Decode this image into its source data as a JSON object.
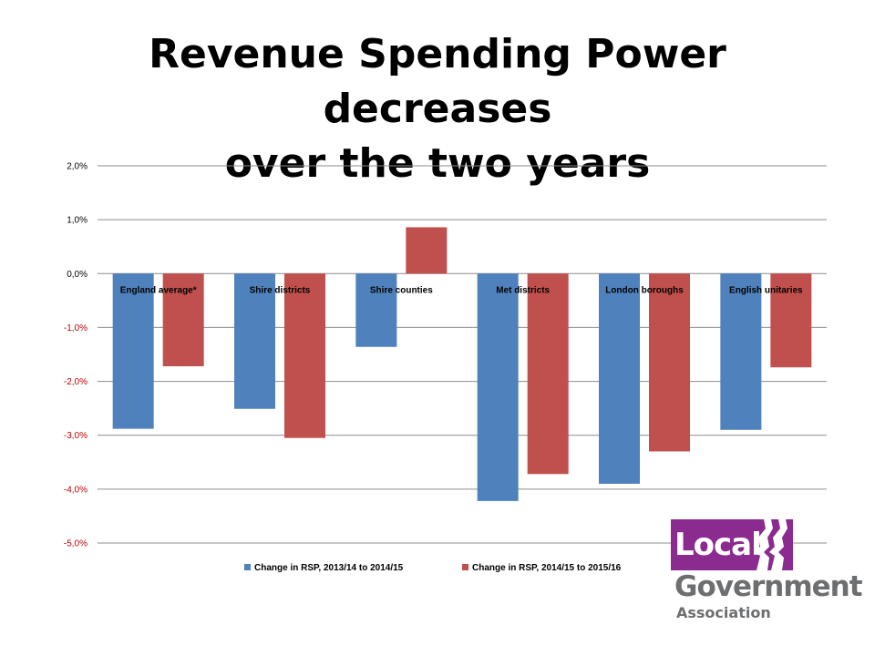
{
  "slide": {
    "title_line1": "Revenue Spending Power decreases",
    "title_line2": "over the two years"
  },
  "logo": {
    "local": "Local",
    "government": "Government",
    "association": "Association",
    "color_purple": "#8b2b8f",
    "color_grey": "#6d6e70"
  },
  "chart_data": {
    "type": "bar",
    "categories": [
      "England average*",
      "Shire districts",
      "Shire counties",
      "Met districts",
      "London boroughs",
      "English unitaries"
    ],
    "series": [
      {
        "name": "Change in RSP, 2013/14 to 2014/15",
        "color": "#4f81bd",
        "values": [
          -2.88,
          -2.51,
          -1.36,
          -4.22,
          -3.9,
          -2.9
        ]
      },
      {
        "name": "Change in RSP, 2014/15 to 2015/16",
        "color": "#c0504d",
        "values": [
          -1.72,
          -3.05,
          0.86,
          -3.72,
          -3.3,
          -1.74
        ]
      }
    ],
    "ylim": [
      -5.0,
      2.0
    ],
    "yticks": [
      {
        "value": 2.0,
        "label": "2,0%"
      },
      {
        "value": 1.0,
        "label": "1,0%"
      },
      {
        "value": 0.0,
        "label": "0,0%"
      },
      {
        "value": -1.0,
        "label": "-1,0%"
      },
      {
        "value": -2.0,
        "label": "-2,0%"
      },
      {
        "value": -3.0,
        "label": "-3,0%"
      },
      {
        "value": -4.0,
        "label": "-4,0%"
      },
      {
        "value": -5.0,
        "label": "-5,0%"
      }
    ],
    "negative_tick_color": "#c00000",
    "grid": true,
    "legend_position": "bottom",
    "category_label_position": "at zero line"
  }
}
